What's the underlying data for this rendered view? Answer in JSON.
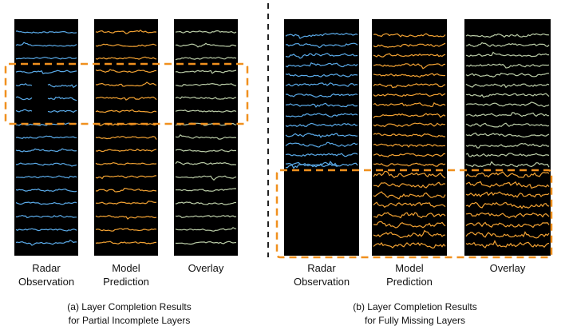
{
  "left": {
    "panels": [
      {
        "label": [
          "Radar",
          "Observation"
        ]
      },
      {
        "label": [
          "Model",
          "Prediction"
        ]
      },
      {
        "label": [
          "Overlay"
        ]
      }
    ],
    "caption": [
      "(a) Layer Completion Results",
      "for Partial Incomplete Layers"
    ]
  },
  "right": {
    "panels": [
      {
        "label": [
          "Radar",
          "Observation"
        ]
      },
      {
        "label": [
          "Model",
          "Prediction"
        ]
      },
      {
        "label": [
          "Overlay"
        ]
      }
    ],
    "caption": [
      "(b) Layer Completion Results",
      "for Fully Missing Layers"
    ]
  }
}
